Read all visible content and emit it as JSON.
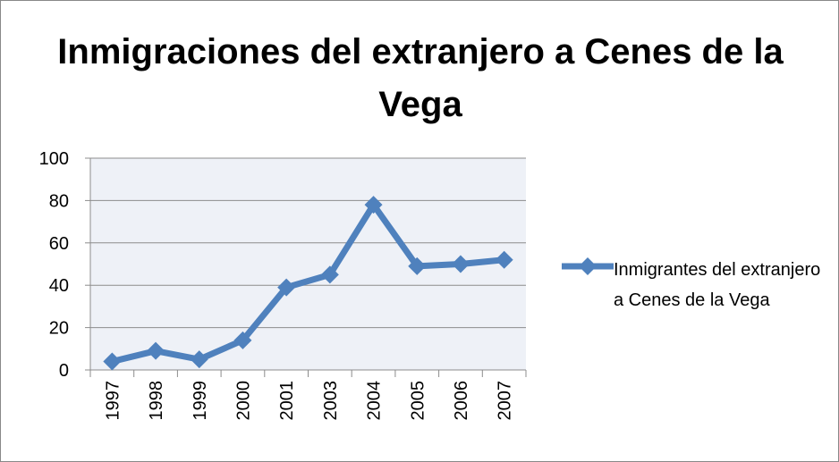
{
  "chart_data": {
    "type": "line",
    "title": "Inmigraciones del extranjero a Cenes de la Vega",
    "categories": [
      "1997",
      "1998",
      "1999",
      "2000",
      "2001",
      "2003",
      "2004",
      "2005",
      "2006",
      "2007"
    ],
    "series": [
      {
        "name": "Inmigrantes del extranjero a Cenes de la Vega",
        "color": "#4f81bd",
        "values": [
          4,
          9,
          5,
          14,
          39,
          45,
          78,
          49,
          50,
          52
        ]
      }
    ],
    "ylim": [
      0,
      100
    ],
    "yticks": [
      0,
      20,
      40,
      60,
      80,
      100
    ],
    "grid": true,
    "legend": "right"
  }
}
